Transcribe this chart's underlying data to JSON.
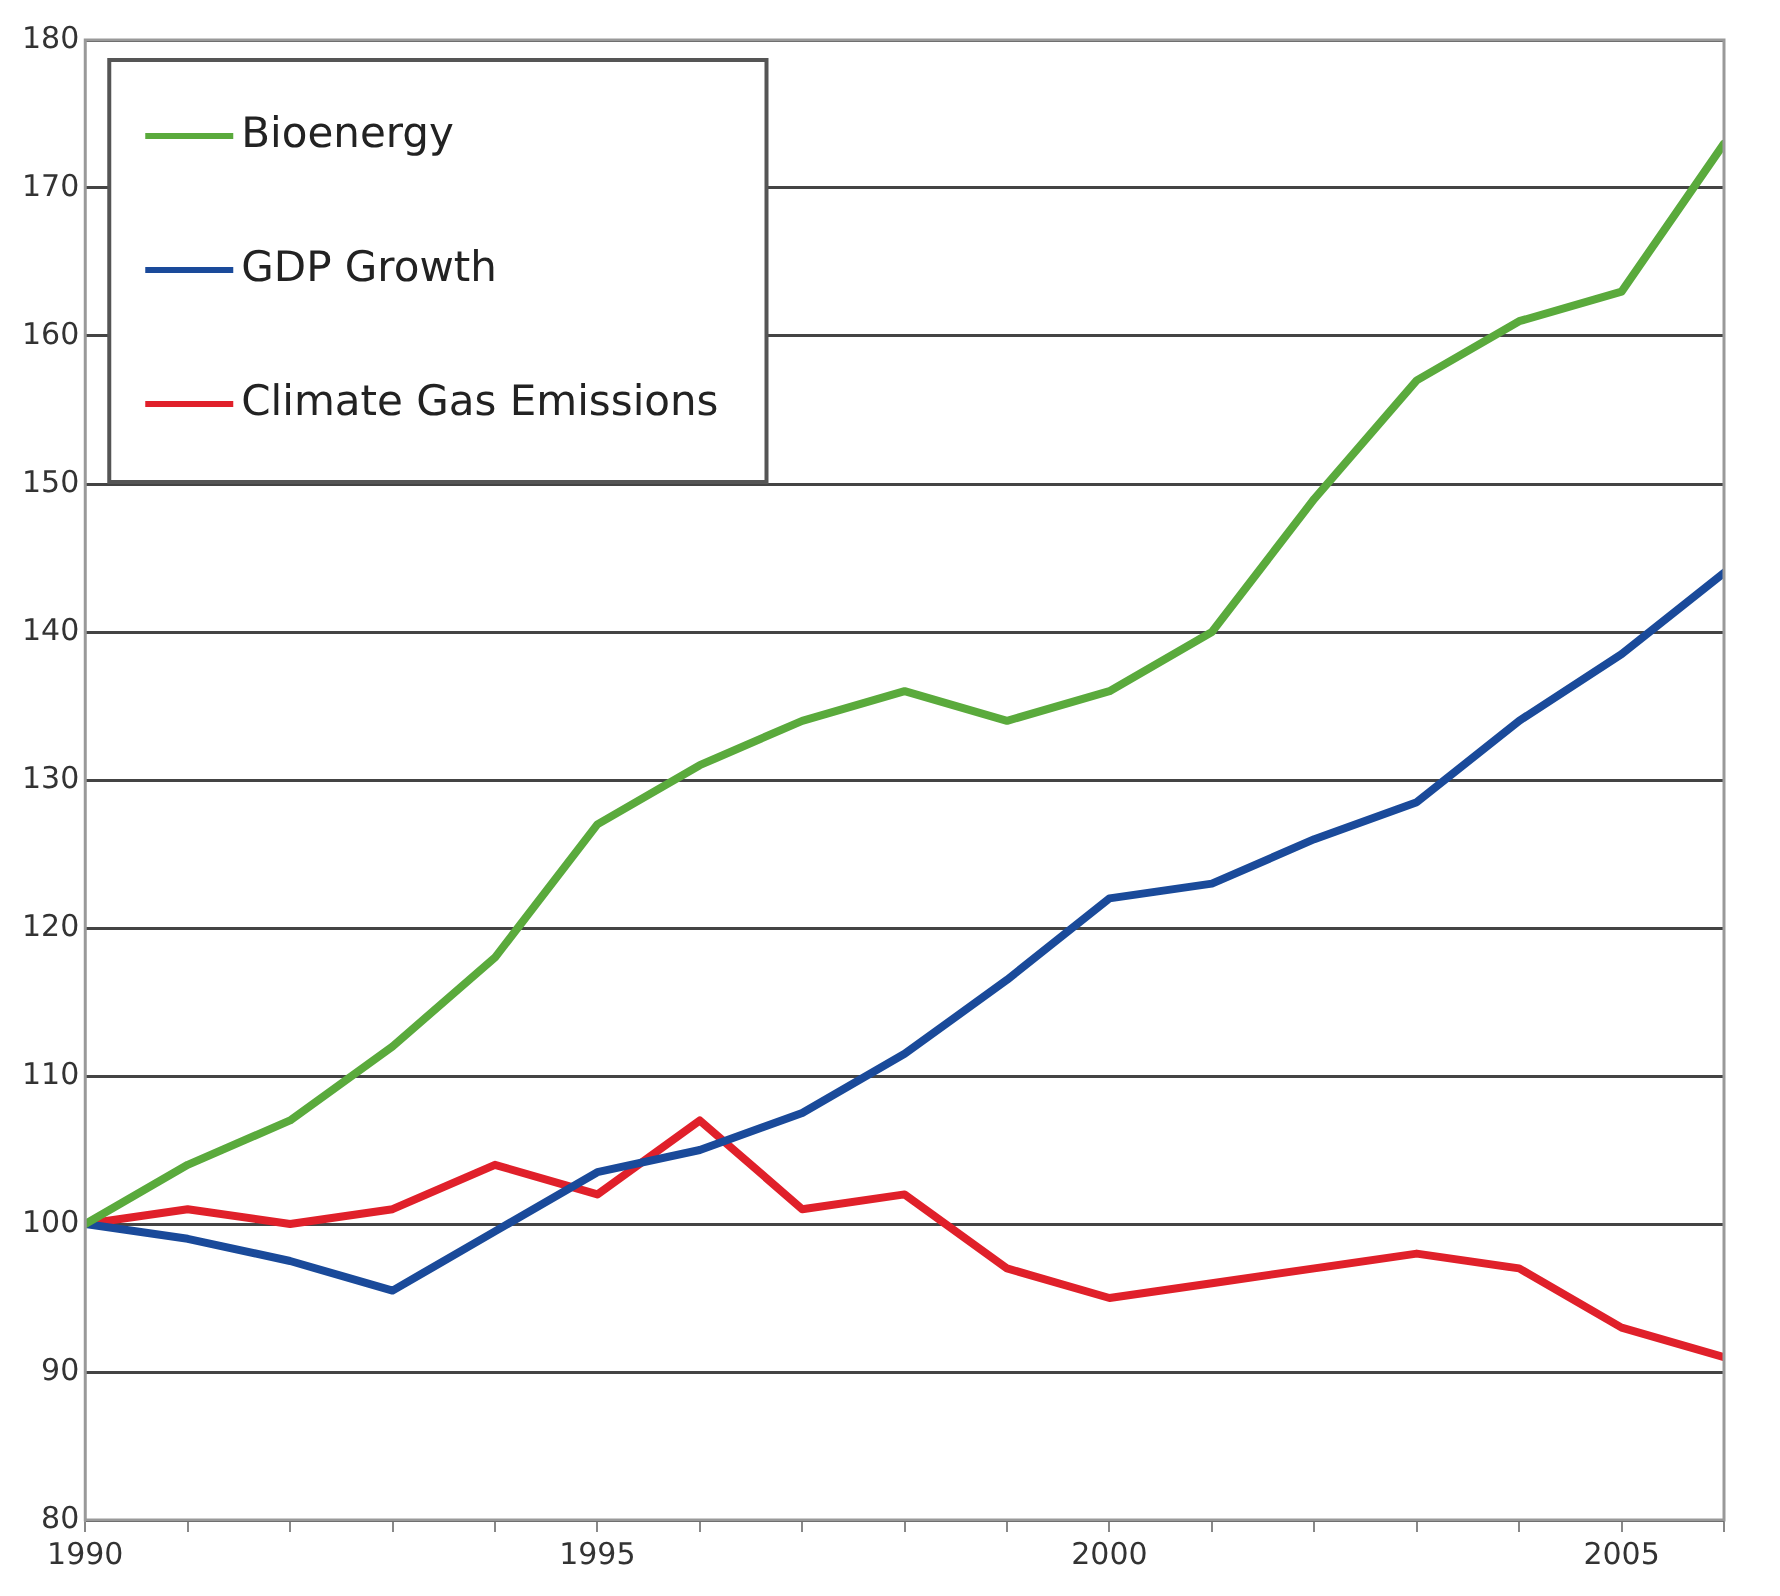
{
  "chart_data": {
    "type": "line",
    "x": [
      1990,
      1991,
      1992,
      1993,
      1994,
      1995,
      1996,
      1997,
      1998,
      1999,
      2000,
      2001,
      2002,
      2003,
      2004,
      2005,
      2006
    ],
    "series": [
      {
        "name": "Bioenergy",
        "color": "#5aaa3c",
        "values": [
          100,
          104,
          107,
          112,
          118,
          127,
          131,
          134,
          136,
          134,
          136,
          140,
          149,
          157,
          161,
          163,
          173
        ]
      },
      {
        "name": "GDP Growth",
        "color": "#1a4a9a",
        "values": [
          100,
          99,
          97.5,
          95.5,
          99.5,
          103.5,
          105,
          107.5,
          111.5,
          116.5,
          122,
          123,
          126,
          128.5,
          134,
          138.5,
          144
        ]
      },
      {
        "name": "Climate Gas Emissions",
        "color": "#e0202a",
        "values": [
          100,
          101,
          100,
          101,
          104,
          102,
          107,
          101,
          102,
          97,
          95,
          96,
          97,
          98,
          97,
          93,
          91
        ]
      }
    ],
    "xlim": [
      1990,
      2006
    ],
    "xticks": [
      1990,
      {
        "value": 1991,
        "label": null
      },
      {
        "value": 1992,
        "label": null
      },
      {
        "value": 1993,
        "label": null
      },
      {
        "value": 1994,
        "label": null
      },
      1995,
      {
        "value": 1996,
        "label": null
      },
      {
        "value": 1997,
        "label": null
      },
      {
        "value": 1998,
        "label": null
      },
      {
        "value": 1999,
        "label": null
      },
      2000,
      {
        "value": 2001,
        "label": null
      },
      {
        "value": 2002,
        "label": null
      },
      {
        "value": 2003,
        "label": null
      },
      {
        "value": 2004,
        "label": null
      },
      2005,
      {
        "value": 2006,
        "label": null
      }
    ],
    "ylim": [
      80,
      180
    ],
    "yticks": [
      80,
      90,
      100,
      110,
      120,
      130,
      140,
      150,
      160,
      170,
      180
    ],
    "grid": "y",
    "legend": "top left",
    "marker": "none",
    "line_style": "solid"
  }
}
